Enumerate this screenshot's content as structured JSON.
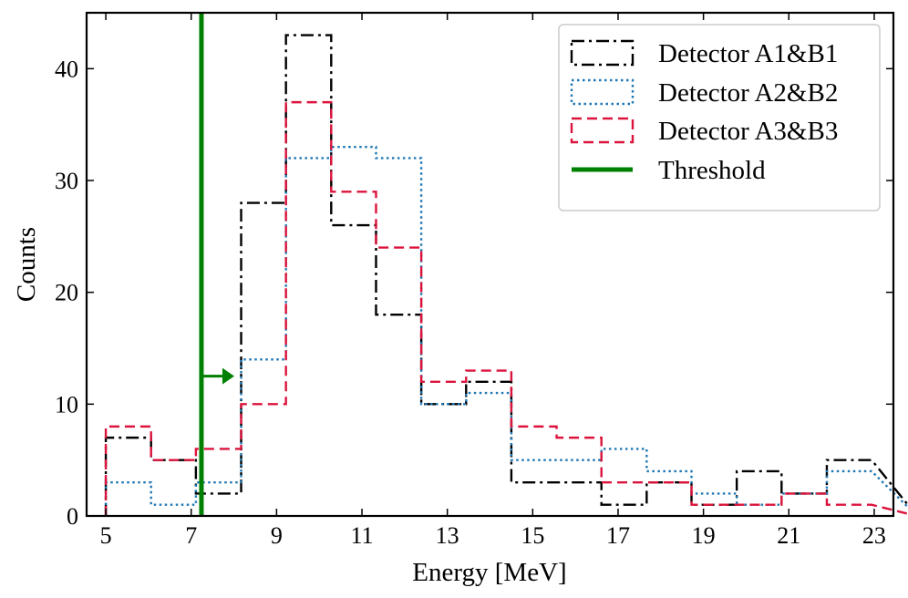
{
  "chart_data": {
    "type": "histogram",
    "title": "",
    "xlabel": "Energy [MeV]",
    "ylabel": "Counts",
    "xlim": [
      4.55,
      23.45
    ],
    "ylim": [
      0,
      45
    ],
    "xticks": [
      5,
      7,
      9,
      11,
      13,
      15,
      17,
      19,
      21,
      23
    ],
    "yticks": [
      0,
      10,
      20,
      30,
      40
    ],
    "grid": false,
    "legend_position": "top-right",
    "bin_edges": [
      5.0,
      6.06,
      7.11,
      8.17,
      9.22,
      10.28,
      11.33,
      12.39,
      13.44,
      14.5,
      15.56,
      16.61,
      17.67,
      18.72,
      19.78,
      20.83,
      21.89,
      22.94
    ],
    "series": [
      {
        "name": "Detector A1&B1",
        "color": "#000000",
        "dash": "dashdot",
        "counts": [
          7,
          5,
          2,
          28,
          43,
          26,
          18,
          10,
          12,
          3,
          3,
          1,
          3,
          1,
          4,
          2,
          5
        ]
      },
      {
        "name": "Detector A2&B2",
        "color": "#1f77b4",
        "dash": "dotted",
        "counts": [
          3,
          1,
          3,
          14,
          32,
          33,
          32,
          10,
          11,
          5,
          5,
          6,
          4,
          2,
          1,
          2,
          4
        ]
      },
      {
        "name": "Detector A3&B3",
        "color": "#dc143c",
        "dash": "dashed",
        "counts": [
          8,
          5,
          6,
          10,
          37,
          29,
          24,
          12,
          13,
          8,
          7,
          3,
          3,
          1,
          1,
          2,
          1
        ]
      }
    ],
    "threshold": {
      "name": "Threshold",
      "x": 7.24,
      "color": "#008000",
      "arrow_y": 12.5
    }
  }
}
